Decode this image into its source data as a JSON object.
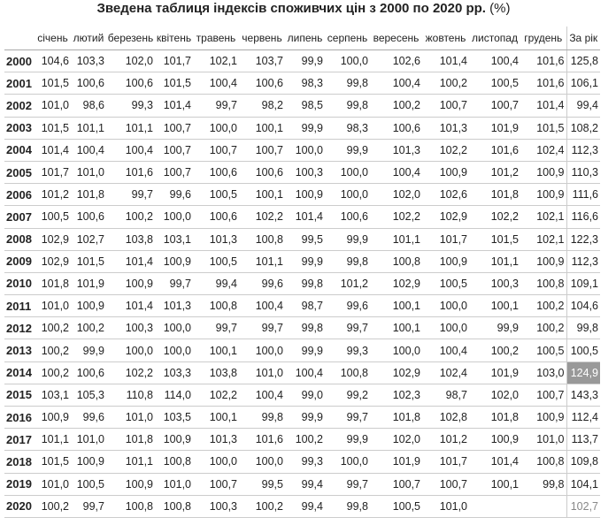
{
  "header": {
    "title": "Зведена таблиця індексів споживчих цін з 2000 по 2020 рр.",
    "unit": "(%)"
  },
  "table": {
    "columns": [
      "січень",
      "лютий",
      "березень",
      "квітень",
      "травень",
      "червень",
      "липень",
      "серпень",
      "вересень",
      "жовтень",
      "листопад",
      "грудень",
      "За рік"
    ],
    "rows": [
      [
        "2000",
        "104,6",
        "103,3",
        "102,0",
        "101,7",
        "102,1",
        "103,7",
        "99,9",
        "100,0",
        "102,6",
        "101,4",
        "100,4",
        "101,6",
        "125,8"
      ],
      [
        "2001",
        "101,5",
        "100,6",
        "100,6",
        "101,5",
        "100,4",
        "100,6",
        "98,3",
        "99,8",
        "100,4",
        "100,2",
        "100,5",
        "101,6",
        "106,1"
      ],
      [
        "2002",
        "101,0",
        "98,6",
        "99,3",
        "101,4",
        "99,7",
        "98,2",
        "98,5",
        "99,8",
        "100,2",
        "100,7",
        "100,7",
        "101,4",
        "99,4"
      ],
      [
        "2003",
        "101,5",
        "101,1",
        "101,1",
        "100,7",
        "100,0",
        "100,1",
        "99,9",
        "98,3",
        "100,6",
        "101,3",
        "101,9",
        "101,5",
        "108,2"
      ],
      [
        "2004",
        "101,4",
        "100,4",
        "100,4",
        "100,7",
        "100,7",
        "100,7",
        "100,0",
        "99,9",
        "101,3",
        "102,2",
        "101,6",
        "102,4",
        "112,3"
      ],
      [
        "2005",
        "101,7",
        "101,0",
        "101,6",
        "100,7",
        "100,6",
        "100,6",
        "100,3",
        "100,0",
        "100,4",
        "100,9",
        "101,2",
        "100,9",
        "110,3"
      ],
      [
        "2006",
        "101,2",
        "101,8",
        "99,7",
        "99,6",
        "100,5",
        "100,1",
        "100,9",
        "100,0",
        "102,0",
        "102,6",
        "101,8",
        "100,9",
        "111,6"
      ],
      [
        "2007",
        "100,5",
        "100,6",
        "100,2",
        "100,0",
        "100,6",
        "102,2",
        "101,4",
        "100,6",
        "102,2",
        "102,9",
        "102,2",
        "102,1",
        "116,6"
      ],
      [
        "2008",
        "102,9",
        "102,7",
        "103,8",
        "103,1",
        "101,3",
        "100,8",
        "99,5",
        "99,9",
        "101,1",
        "101,7",
        "101,5",
        "102,1",
        "122,3"
      ],
      [
        "2009",
        "102,9",
        "101,5",
        "101,4",
        "100,9",
        "100,5",
        "101,1",
        "99,9",
        "99,8",
        "100,8",
        "100,9",
        "101,1",
        "100,9",
        "112,3"
      ],
      [
        "2010",
        "101,8",
        "101,9",
        "100,9",
        "99,7",
        "99,4",
        "99,6",
        "99,8",
        "101,2",
        "102,9",
        "100,5",
        "100,3",
        "100,8",
        "109,1"
      ],
      [
        "2011",
        "101,0",
        "100,9",
        "101,4",
        "101,3",
        "100,8",
        "100,4",
        "98,7",
        "99,6",
        "100,1",
        "100,0",
        "100,1",
        "100,2",
        "104,6"
      ],
      [
        "2012",
        "100,2",
        "100,2",
        "100,3",
        "100,0",
        "99,7",
        "99,7",
        "99,8",
        "99,7",
        "100,1",
        "100,0",
        "99,9",
        "100,2",
        "99,8"
      ],
      [
        "2013",
        "100,2",
        "99,9",
        "100,0",
        "100,0",
        "100,1",
        "100,0",
        "99,9",
        "99,3",
        "100,0",
        "100,4",
        "100,2",
        "100,5",
        "100,5"
      ],
      [
        "2014",
        "100,2",
        "100,6",
        "102,2",
        "103,3",
        "103,8",
        "101,0",
        "100,4",
        "100,8",
        "102,9",
        "102,4",
        "101,9",
        "103,0",
        "124,9"
      ],
      [
        "2015",
        "103,1",
        "105,3",
        "110,8",
        "114,0",
        "102,2",
        "100,4",
        "99,0",
        "99,2",
        "102,3",
        "98,7",
        "102,0",
        "100,7",
        "143,3"
      ],
      [
        "2016",
        "100,9",
        "99,6",
        "101,0",
        "103,5",
        "100,1",
        "99,8",
        "99,9",
        "99,7",
        "101,8",
        "102,8",
        "101,8",
        "100,9",
        "112,4"
      ],
      [
        "2017",
        "101,1",
        "101,0",
        "101,8",
        "100,9",
        "101,3",
        "101,6",
        "100,2",
        "99,9",
        "102,0",
        "101,2",
        "100,9",
        "101,0",
        "113,7"
      ],
      [
        "2018",
        "101,5",
        "100,9",
        "101,1",
        "100,8",
        "100,0",
        "100,0",
        "99,3",
        "100,0",
        "101,9",
        "101,7",
        "101,4",
        "100,8",
        "109,8"
      ],
      [
        "2019",
        "101,0",
        "100,5",
        "100,9",
        "101,0",
        "100,7",
        "99,5",
        "99,4",
        "99,7",
        "100,7",
        "100,7",
        "100,1",
        "99,8",
        "104,1"
      ],
      [
        "2020",
        "100,2",
        "99,7",
        "100,8",
        "100,8",
        "100,3",
        "100,2",
        "99,4",
        "99,8",
        "100,5",
        "101,0",
        null,
        null,
        "102,7"
      ]
    ]
  }
}
